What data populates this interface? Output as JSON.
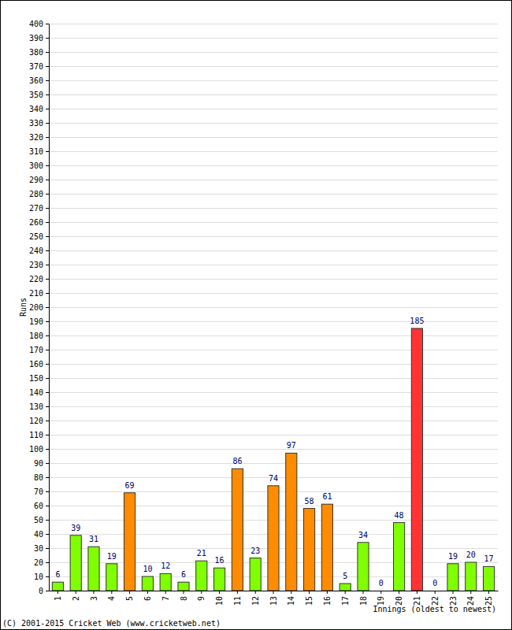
{
  "chart_data": {
    "type": "bar",
    "x_label": "Innings (oldest to newest)",
    "y_label": "Runs",
    "annotations": [
      "(C) 2001-2015 Cricket Web (www.cricketweb.net)"
    ],
    "categories": [
      "1",
      "2",
      "3",
      "4",
      "5",
      "6",
      "7",
      "8",
      "9",
      "10",
      "11",
      "12",
      "13",
      "14",
      "15",
      "16",
      "17",
      "18",
      "19",
      "20",
      "21",
      "22",
      "23",
      "24",
      "25"
    ],
    "values": [
      6,
      39,
      31,
      19,
      69,
      10,
      12,
      6,
      21,
      16,
      86,
      23,
      74,
      97,
      58,
      61,
      5,
      34,
      0,
      48,
      185,
      0,
      19,
      20,
      17
    ],
    "colors": [
      "#80ff00",
      "#80ff00",
      "#80ff00",
      "#80ff00",
      "#ff8c00",
      "#80ff00",
      "#80ff00",
      "#80ff00",
      "#80ff00",
      "#80ff00",
      "#ff8c00",
      "#80ff00",
      "#ff8c00",
      "#ff8c00",
      "#ff8c00",
      "#ff8c00",
      "#80ff00",
      "#80ff00",
      "#80ff00",
      "#80ff00",
      "#ff3333",
      "#80ff00",
      "#80ff00",
      "#80ff00",
      "#80ff00"
    ],
    "ylim": [
      0,
      400
    ],
    "yticks": [
      0,
      10,
      20,
      30,
      40,
      50,
      60,
      70,
      80,
      90,
      100,
      110,
      120,
      130,
      140,
      150,
      160,
      170,
      180,
      190,
      200,
      210,
      220,
      230,
      240,
      250,
      260,
      270,
      280,
      290,
      300,
      310,
      320,
      330,
      340,
      350,
      360,
      370,
      380,
      390,
      400
    ],
    "grid": true,
    "data_labels": true
  }
}
